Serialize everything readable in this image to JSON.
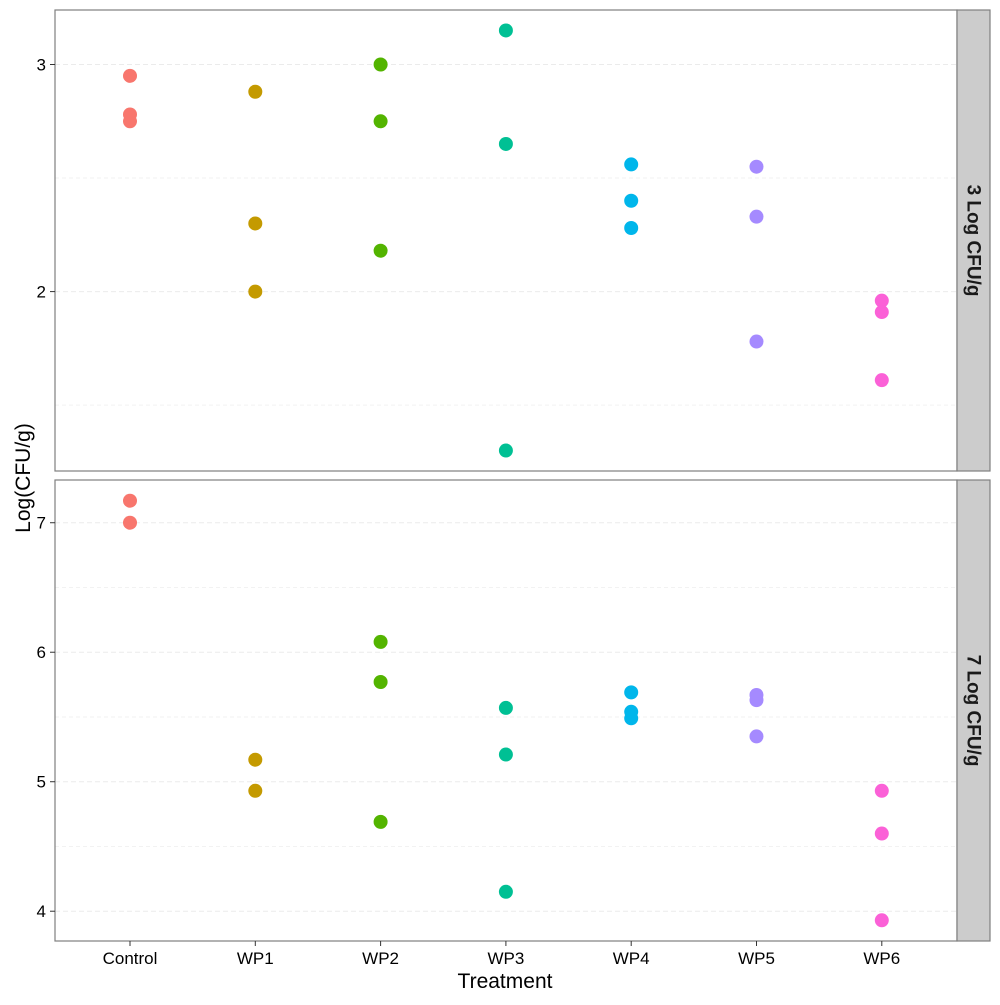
{
  "chart_data": {
    "type": "scatter",
    "xlabel": "Treatment",
    "ylabel": "Log(CFU/g)",
    "categories": [
      "Control",
      "WP1",
      "WP2",
      "WP3",
      "WP4",
      "WP5",
      "WP6"
    ],
    "colors": {
      "Control": "#F8766D",
      "WP1": "#C49A00",
      "WP2": "#53B400",
      "WP3": "#00C094",
      "WP4": "#00B6EB",
      "WP5": "#A58AFF",
      "WP6": "#FB61D7"
    },
    "panels": [
      {
        "strip_label": "3 Log CFU/g",
        "ylim": [
          1.21,
          3.24
        ],
        "yticks": [
          2,
          3
        ],
        "ytick_labels": [
          "2",
          "3"
        ],
        "minor_grid": [
          1.5,
          2.5
        ],
        "points": [
          {
            "category": "Control",
            "values": [
              2.95,
              2.78,
              2.75
            ]
          },
          {
            "category": "WP1",
            "values": [
              2.88,
              2.3,
              2.0
            ]
          },
          {
            "category": "WP2",
            "values": [
              3.0,
              2.75,
              2.18
            ]
          },
          {
            "category": "WP3",
            "values": [
              3.15,
              2.65,
              1.3
            ]
          },
          {
            "category": "WP4",
            "values": [
              2.56,
              2.4,
              2.28
            ]
          },
          {
            "category": "WP5",
            "values": [
              2.55,
              2.33,
              1.78
            ]
          },
          {
            "category": "WP6",
            "values": [
              1.96,
              1.91,
              1.61
            ]
          }
        ]
      },
      {
        "strip_label": "7 Log CFU/g",
        "ylim": [
          3.77,
          7.33
        ],
        "yticks": [
          4,
          5,
          6,
          7
        ],
        "ytick_labels": [
          "4",
          "5",
          "6",
          "7"
        ],
        "minor_grid": [
          4.5,
          5.5,
          6.5
        ],
        "points": [
          {
            "category": "Control",
            "values": [
              7.17,
              7.0
            ]
          },
          {
            "category": "WP1",
            "values": [
              5.17,
              4.93
            ]
          },
          {
            "category": "WP2",
            "values": [
              6.08,
              5.77,
              4.69
            ]
          },
          {
            "category": "WP3",
            "values": [
              5.57,
              5.21,
              4.15
            ]
          },
          {
            "category": "WP4",
            "values": [
              5.69,
              5.54,
              5.49
            ]
          },
          {
            "category": "WP5",
            "values": [
              5.67,
              5.63,
              5.35
            ]
          },
          {
            "category": "WP6",
            "values": [
              4.93,
              4.6,
              3.93
            ]
          }
        ]
      }
    ]
  }
}
